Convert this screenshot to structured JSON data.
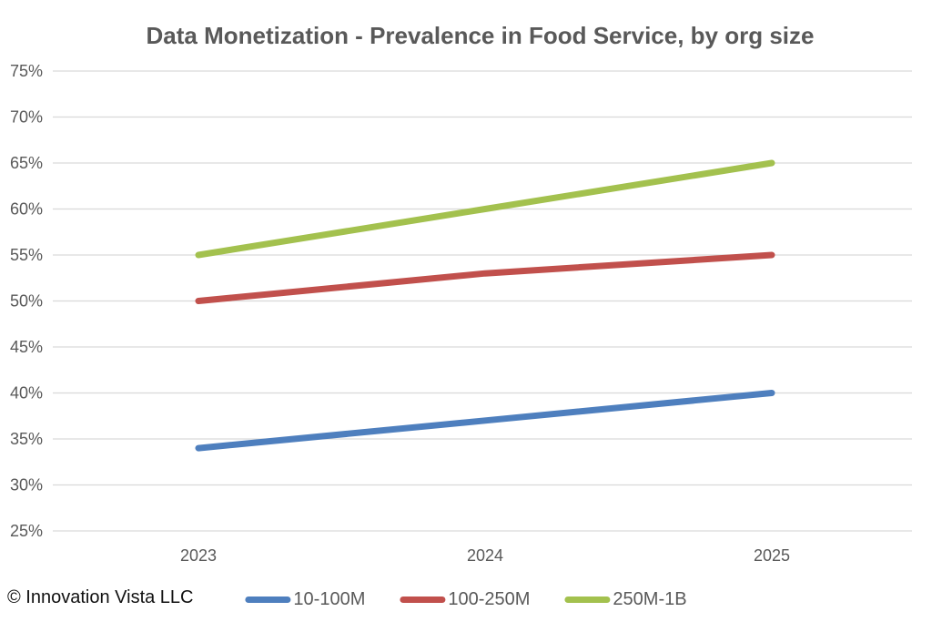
{
  "chart_data": {
    "type": "line",
    "title": "Data Monetization - Prevalence in Food Service, by org size",
    "categories": [
      "2023",
      "2024",
      "2025"
    ],
    "series": [
      {
        "name": "10-100M",
        "color": "#4e7fbe",
        "values": [
          34,
          37,
          40
        ]
      },
      {
        "name": "100-250M",
        "color": "#c1504c",
        "values": [
          50,
          53,
          55
        ]
      },
      {
        "name": "250M-1B",
        "color": "#a3c14e",
        "values": [
          55,
          60,
          65
        ]
      }
    ],
    "ylabel": "",
    "xlabel": "",
    "ylim": [
      25,
      75
    ],
    "ytick_step": 5,
    "ytick_format": "percent",
    "grid": "horizontal-only",
    "legend_position": "bottom-center"
  },
  "footer": {
    "copyright": "© Innovation Vista LLC"
  },
  "colors": {
    "axis_text": "#595959",
    "gridline": "#d9d9d9",
    "title_text": "#595959",
    "legend_text": "#595959",
    "copyright_text": "#111111",
    "background": "#ffffff"
  }
}
